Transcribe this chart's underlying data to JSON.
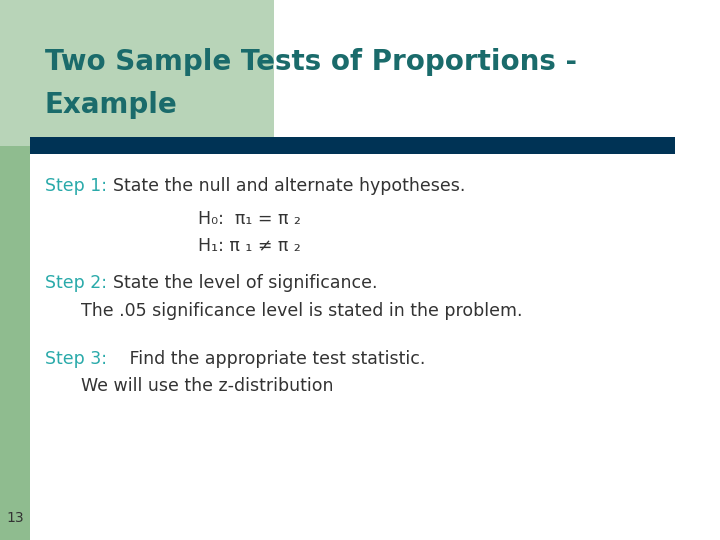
{
  "title_line1": "Two Sample Tests of Proportions -",
  "title_line2": "Example",
  "title_color": "#1a6b6b",
  "title_fontsize": 20,
  "bg_color": "#ffffff",
  "left_bar_color": "#8fbc8f",
  "left_bar_width": 0.042,
  "green_corner_color": "#b8d4b8",
  "header_bar_color": "#003355",
  "step1_label": "Step 1:",
  "step1_text": "State the null and alternate hypotheses.",
  "step_label_color": "#2aaaaa",
  "h0_line": "H₀:  π₁ = π ₂",
  "h1_line": "H₁: π ₁ ≠ π ₂",
  "step2_label": "Step 2:",
  "step2_text": "State the level of significance.",
  "step2_sub": "The .05 significance level is stated in the problem.",
  "step3_label": "Step 3:",
  "step3_text": "   Find the appropriate test statistic.",
  "step3_sub": "We will use the z-distribution",
  "slide_number": "13",
  "body_text_color": "#333333",
  "body_fontsize": 12.5
}
